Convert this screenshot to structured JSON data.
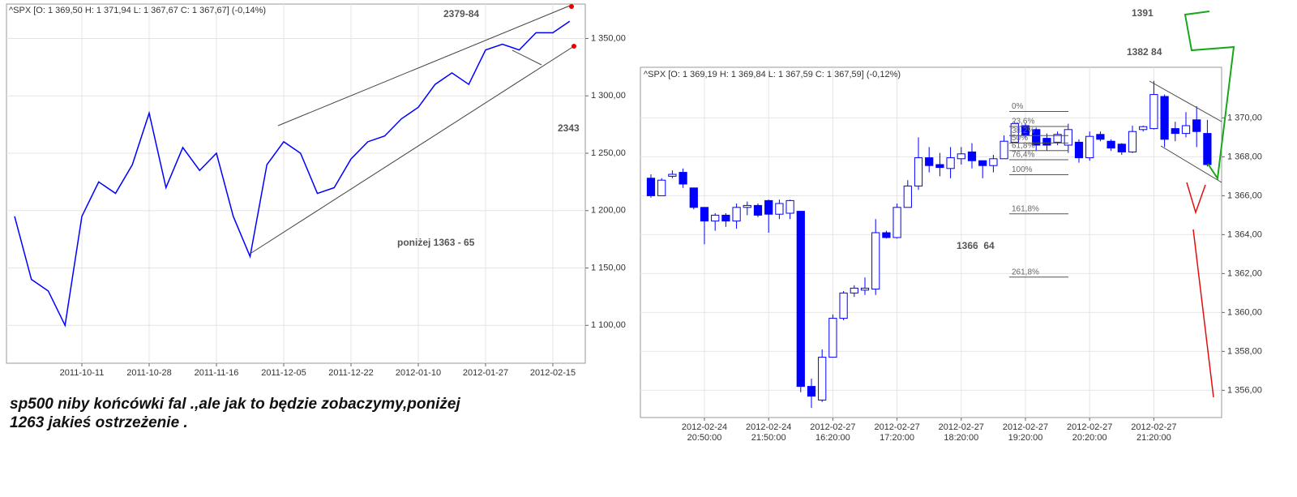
{
  "chart_data": [
    {
      "type": "line",
      "title": "^SPX [O: 1 369,50  H: 1 371,94  L: 1 367,67  C: 1 367,67] (-0,14%)",
      "color": "#0000ff",
      "categories": [
        null,
        null,
        null,
        null,
        "2011-10-11",
        null,
        null,
        null,
        "2011-10-28",
        null,
        null,
        null,
        "2011-11-16",
        null,
        null,
        null,
        "2011-12-05",
        null,
        null,
        null,
        "2011-12-22",
        null,
        null,
        null,
        "2012-01-10",
        null,
        null,
        null,
        "2012-01-27",
        null,
        null,
        null,
        "2012-02-15",
        null
      ],
      "values": [
        1195,
        1140,
        1130,
        1100,
        1195,
        1225,
        1215,
        1240,
        1285,
        1220,
        1255,
        1235,
        1250,
        1195,
        1160,
        1240,
        1260,
        1250,
        1215,
        1220,
        1245,
        1260,
        1265,
        1280,
        1290,
        1310,
        1320,
        1310,
        1340,
        1345,
        1340,
        1355,
        1355,
        1365
      ],
      "ylim": [
        1067,
        1380
      ],
      "yticks": [
        {
          "value": 1100,
          "label": "1 100,00"
        },
        {
          "value": 1150,
          "label": "1 150,00"
        },
        {
          "value": 1200,
          "label": "1 200,00"
        },
        {
          "value": 1250,
          "label": "1 250,00"
        },
        {
          "value": 1300,
          "label": "1 300,00"
        },
        {
          "value": 1350,
          "label": "1 350,00"
        }
      ],
      "grid": true,
      "annotations": [
        "2379-84",
        "2343",
        "poniżej 1363 - 65"
      ]
    },
    {
      "type": "candlestick",
      "title": "^SPX [O: 1 369,19  H: 1 369,84  L: 1 367,59  C: 1 367,59] (-0,12%)",
      "color": "#0000ff",
      "categories": [
        null,
        null,
        null,
        null,
        null,
        "2012-02-24\n20:50:00",
        null,
        null,
        null,
        null,
        null,
        "2012-02-24\n21:50:00",
        null,
        null,
        null,
        null,
        null,
        "2012-02-27\n16:20:00",
        null,
        null,
        null,
        null,
        null,
        "2012-02-27\n17:20:00",
        null,
        null,
        null,
        null,
        null,
        "2012-02-27\n18:20:00",
        null,
        null,
        null,
        null,
        null,
        "2012-02-27\n19:20:00",
        null,
        null,
        null,
        null,
        null,
        "2012-02-27\n20:20:00",
        null,
        null,
        null,
        null,
        null,
        "2012-02-27\n21:20:00",
        null,
        null,
        null,
        null,
        null
      ],
      "open": [
        1366.9,
        1366.0,
        1367.0,
        1367.2,
        1366.4,
        1365.4,
        1364.7,
        1365.0,
        1364.7,
        1365.4,
        1365.5,
        1365.75,
        1365.05,
        1365.1,
        1365.2,
        1356.2,
        1355.5,
        1357.7,
        1359.7,
        1361.0,
        1361.15,
        1361.2,
        1364.1,
        1363.85,
        1365.4,
        1366.5,
        1367.95,
        1367.6,
        1367.4,
        1367.9,
        1368.25,
        1367.8,
        1367.55,
        1367.9,
        1368.75,
        1369.6,
        1369.4,
        1368.95,
        1368.75,
        1368.6,
        1368.75,
        1367.95,
        1369.15,
        1368.8,
        1368.65,
        1368.25,
        1369.4,
        1369.45,
        1371.1,
        1369.45,
        1369.2,
        1369.9,
        1369.2
      ],
      "high": [
        1367.1,
        1366.9,
        1367.3,
        1367.4,
        1366.4,
        1365.4,
        1365.1,
        1365.1,
        1365.6,
        1365.7,
        1365.6,
        1365.8,
        1365.8,
        1365.8,
        1365.2,
        1356.6,
        1358.1,
        1359.9,
        1361.1,
        1361.4,
        1361.8,
        1364.8,
        1364.2,
        1365.6,
        1366.8,
        1369.0,
        1368.5,
        1368.2,
        1368.5,
        1368.5,
        1368.7,
        1367.8,
        1368.1,
        1369.1,
        1369.8,
        1369.7,
        1369.5,
        1369.2,
        1369.3,
        1369.7,
        1368.9,
        1369.3,
        1369.3,
        1368.9,
        1368.7,
        1369.6,
        1369.6,
        1371.9,
        1371.2,
        1369.8,
        1370.3,
        1370.6,
        1369.9
      ],
      "low": [
        1365.9,
        1366.0,
        1366.9,
        1366.4,
        1365.3,
        1363.5,
        1364.2,
        1364.4,
        1364.3,
        1365.0,
        1364.9,
        1364.1,
        1364.8,
        1364.8,
        1355.9,
        1355.1,
        1355.4,
        1357.7,
        1359.6,
        1360.8,
        1360.9,
        1360.9,
        1363.8,
        1363.8,
        1365.4,
        1366.3,
        1367.2,
        1367.0,
        1366.9,
        1367.6,
        1367.4,
        1366.9,
        1367.2,
        1367.9,
        1368.7,
        1368.9,
        1368.3,
        1368.3,
        1368.6,
        1368.2,
        1367.7,
        1367.8,
        1368.8,
        1368.3,
        1368.1,
        1368.2,
        1369.3,
        1369.4,
        1368.5,
        1368.8,
        1369.0,
        1368.5,
        1367.5
      ],
      "close": [
        1366.0,
        1366.8,
        1367.1,
        1366.6,
        1365.4,
        1364.7,
        1365.0,
        1364.7,
        1365.4,
        1365.5,
        1365.0,
        1365.05,
        1365.6,
        1365.75,
        1356.2,
        1355.7,
        1357.7,
        1359.7,
        1361.0,
        1361.25,
        1361.25,
        1364.1,
        1363.85,
        1365.4,
        1366.5,
        1367.95,
        1367.55,
        1367.45,
        1367.95,
        1368.15,
        1367.8,
        1367.55,
        1367.9,
        1368.8,
        1369.7,
        1369.1,
        1368.6,
        1368.6,
        1369.15,
        1369.4,
        1367.95,
        1369.05,
        1368.9,
        1368.45,
        1368.25,
        1369.3,
        1369.55,
        1371.2,
        1368.9,
        1369.2,
        1369.6,
        1369.3,
        1367.6
      ],
      "ylim": [
        1354.6,
        1372.6
      ],
      "yticks": [
        {
          "value": 1356,
          "label": "1 356,00"
        },
        {
          "value": 1358,
          "label": "1 358,00"
        },
        {
          "value": 1360,
          "label": "1 360,00"
        },
        {
          "value": 1362,
          "label": "1 362,00"
        },
        {
          "value": 1364,
          "label": "1 364,00"
        },
        {
          "value": 1366,
          "label": "1 366,00"
        },
        {
          "value": 1368,
          "label": "1 368,00"
        },
        {
          "value": 1370,
          "label": "1 370,00"
        }
      ],
      "grid": true,
      "fibonacci": [
        {
          "label": "0%",
          "value": 1370.33
        },
        {
          "label": "23,6%",
          "value": 1369.56
        },
        {
          "label": "38,2%",
          "value": 1369.09
        },
        {
          "label": "50%",
          "value": 1368.71
        },
        {
          "label": "61,8%",
          "value": 1368.32
        },
        {
          "label": "76,4%",
          "value": 1367.85
        },
        {
          "label": "100%",
          "value": 1367.08
        },
        {
          "label": "161,8%",
          "value": 1365.07
        },
        {
          "label": "261,8%",
          "value": 1361.82
        }
      ],
      "annotations": [
        "1391",
        "1382 84",
        "1366  64"
      ]
    }
  ],
  "caption": [
    "sp500 niby końcówki fal .,ale jak to będzie zobaczymy,poniżej",
    "1263 jakieś ostrzeżenie ."
  ]
}
